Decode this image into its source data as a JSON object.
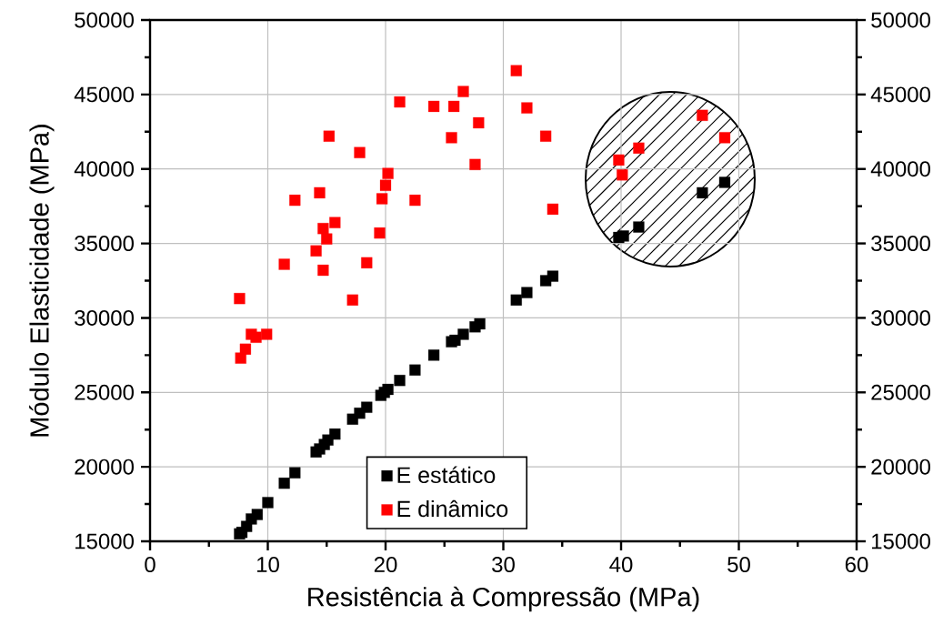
{
  "chart_data": {
    "type": "scatter",
    "xlabel": "Resistência à Compressão (MPa)",
    "ylabel": "Módulo Elasticidade (MPa)",
    "xlim": [
      0,
      60
    ],
    "xticks": [
      0,
      10,
      20,
      30,
      40,
      50,
      60
    ],
    "ylim": [
      15000,
      50000
    ],
    "yticks": [
      15000,
      20000,
      25000,
      30000,
      35000,
      40000,
      45000,
      50000
    ],
    "y2lim": [
      15000,
      50000
    ],
    "y2ticks": [
      15000,
      20000,
      25000,
      30000,
      35000,
      40000,
      45000,
      50000
    ],
    "grid": true,
    "legend": "bottom",
    "marker": "square",
    "series": [
      {
        "name": "E estático",
        "color": "#000000",
        "x": [
          7.6,
          7.8,
          8.2,
          8.6,
          9.1,
          10.0,
          11.4,
          12.3,
          14.1,
          14.4,
          14.8,
          15.1,
          15.7,
          17.2,
          17.8,
          18.4,
          19.6,
          19.9,
          20.2,
          21.2,
          22.5,
          24.1,
          25.6,
          25.9,
          26.6,
          27.6,
          28.0,
          31.1,
          32.0,
          33.6,
          34.2,
          39.8,
          40.2,
          41.5,
          46.9,
          48.8
        ],
        "values": [
          15500,
          15600,
          16000,
          16500,
          16800,
          17600,
          18900,
          19600,
          21000,
          21200,
          21500,
          21800,
          22200,
          23200,
          23600,
          24000,
          24800,
          25000,
          25200,
          25800,
          26500,
          27500,
          28400,
          28500,
          28900,
          29400,
          29600,
          31200,
          31700,
          32500,
          32800,
          35400,
          35500,
          36100,
          38400,
          39100
        ]
      },
      {
        "name": "E dinâmico",
        "color": "#ff0000",
        "x": [
          7.6,
          7.7,
          8.1,
          8.6,
          9.0,
          9.9,
          11.4,
          12.3,
          14.1,
          14.4,
          14.7,
          14.7,
          15.0,
          15.2,
          15.7,
          17.2,
          17.8,
          18.4,
          19.5,
          19.7,
          20.0,
          20.2,
          21.2,
          22.5,
          24.1,
          25.6,
          25.8,
          26.6,
          27.6,
          27.9,
          31.1,
          32.0,
          33.6,
          34.2,
          39.8,
          40.1,
          41.5,
          46.9,
          48.8
        ],
        "values": [
          31300,
          27300,
          27900,
          28900,
          28700,
          28900,
          33600,
          37900,
          34500,
          38400,
          36000,
          33200,
          35300,
          42200,
          36400,
          31200,
          41100,
          33700,
          35700,
          38000,
          38900,
          39700,
          44500,
          37900,
          44200,
          42100,
          44200,
          45200,
          40300,
          43100,
          46600,
          44100,
          42200,
          37300,
          40600,
          39600,
          41400,
          43600,
          42100
        ]
      }
    ]
  }
}
